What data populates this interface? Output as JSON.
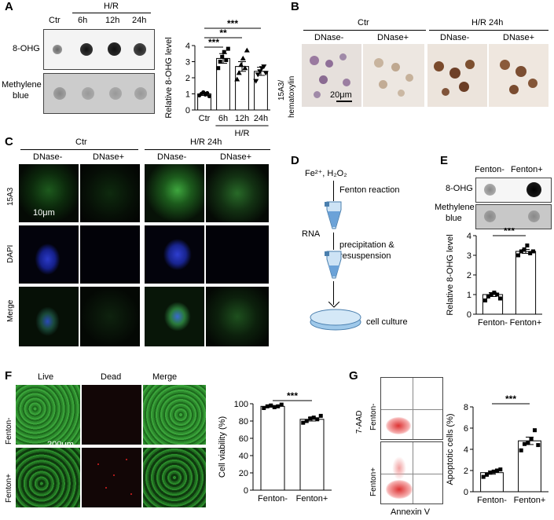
{
  "panels": {
    "A": "A",
    "B": "B",
    "C": "C",
    "D": "D",
    "E": "E",
    "F": "F",
    "G": "G"
  },
  "panelA": {
    "group_label": "H/R",
    "lanes": [
      "Ctr",
      "6h",
      "12h",
      "24h"
    ],
    "row1": "8-OHG",
    "row2_line1": "Methylene",
    "row2_line2": "blue"
  },
  "panelB": {
    "ylabel_line1": "15A3/",
    "ylabel_line2": "hematoxylin",
    "groups": [
      "Ctr",
      "H/R 24h"
    ],
    "sub": [
      "DNase-",
      "DNase+",
      "DNase-",
      "DNase+"
    ],
    "scale": "20μm"
  },
  "panelC": {
    "groups": [
      "Ctr",
      "H/R 24h"
    ],
    "sub": [
      "DNase-",
      "DNase+",
      "DNase-",
      "DNase+"
    ],
    "rows": [
      "15A3",
      "DAPI",
      "Merge"
    ],
    "scale": "10μm"
  },
  "panelD": {
    "reagent": "Fe²⁺, H₂O₂",
    "step1": "Fenton reaction",
    "rna": "RNA",
    "step2_line1": "precipitation &",
    "step2_line2": "resuspension",
    "step3": "cell culture"
  },
  "panelE": {
    "lanes": [
      "Fenton-",
      "Fenton+"
    ],
    "row1": "8-OHG",
    "row2_line1": "Methylene",
    "row2_line2": "blue"
  },
  "panelF": {
    "cols": [
      "Live",
      "Dead",
      "Merge"
    ],
    "rows": [
      "Fenton-",
      "Fenton+"
    ],
    "scale": "200μm"
  },
  "panelG": {
    "rows": [
      "Fenton-",
      "Fenton+"
    ],
    "xlabel": "Annexin V",
    "ylabel": "7-AAD"
  },
  "chart_data": [
    {
      "id": "A",
      "type": "bar",
      "ylabel": "Relative 8-OHG level",
      "ylim": [
        0,
        4
      ],
      "yticks": [
        0,
        1,
        2,
        3,
        4
      ],
      "categories": [
        "Ctr",
        "6h",
        "12h",
        "24h"
      ],
      "group_label": "H/R",
      "values": [
        1.0,
        3.2,
        2.7,
        2.4
      ],
      "errors": [
        0.1,
        0.3,
        0.3,
        0.25
      ],
      "points": [
        [
          0.9,
          1.0,
          1.1,
          0.95,
          1.05,
          0.85
        ],
        [
          2.6,
          3.0,
          3.3,
          3.6,
          3.1,
          3.8
        ],
        [
          1.9,
          2.3,
          2.8,
          3.2,
          2.6,
          3.7
        ],
        [
          1.8,
          2.2,
          2.4,
          2.6,
          2.7,
          2.3
        ]
      ],
      "markers": [
        "circle",
        "square",
        "triangle",
        "inverted-triangle"
      ],
      "significance": [
        {
          "from": 0,
          "to": 1,
          "label": "***"
        },
        {
          "from": 0,
          "to": 2,
          "label": "**"
        },
        {
          "from": 0,
          "to": 3,
          "label": "***"
        }
      ]
    },
    {
      "id": "E",
      "type": "bar",
      "ylabel": "Relative 8-OHG level",
      "ylim": [
        0,
        4
      ],
      "yticks": [
        0,
        1,
        2,
        3,
        4
      ],
      "categories": [
        "Fenton-",
        "Fenton+"
      ],
      "values": [
        1.0,
        3.2
      ],
      "errors": [
        0.1,
        0.1
      ],
      "points": [
        [
          0.7,
          0.9,
          1.0,
          1.1,
          1.0,
          0.8
        ],
        [
          3.0,
          3.2,
          3.3,
          3.5,
          3.1,
          3.2
        ]
      ],
      "markers": [
        "square",
        "square"
      ],
      "significance": [
        {
          "from": 0,
          "to": 1,
          "label": "***"
        }
      ]
    },
    {
      "id": "F",
      "type": "bar",
      "ylabel": "Cell viability (%)",
      "ylim": [
        0,
        100
      ],
      "yticks": [
        0,
        20,
        40,
        60,
        80,
        100
      ],
      "categories": [
        "Fenton-",
        "Fenton+"
      ],
      "values": [
        97,
        82
      ],
      "errors": [
        1,
        2
      ],
      "points": [
        [
          95,
          97,
          98,
          96,
          97,
          99
        ],
        [
          78,
          80,
          83,
          84,
          82,
          86
        ]
      ],
      "markers": [
        "square",
        "square"
      ],
      "significance": [
        {
          "from": 0,
          "to": 1,
          "label": "***"
        }
      ]
    },
    {
      "id": "G",
      "type": "bar",
      "ylabel": "Apoptotic cells (%)",
      "ylim": [
        0,
        8
      ],
      "yticks": [
        0,
        2,
        4,
        6,
        8
      ],
      "categories": [
        "Fenton-",
        "Fenton+"
      ],
      "values": [
        1.8,
        4.8
      ],
      "errors": [
        0.15,
        0.35
      ],
      "points": [
        [
          1.4,
          1.6,
          1.8,
          1.9,
          2.0,
          2.1
        ],
        [
          3.9,
          4.5,
          4.6,
          5.0,
          5.8,
          4.4
        ]
      ],
      "markers": [
        "square",
        "square"
      ],
      "significance": [
        {
          "from": 0,
          "to": 1,
          "label": "***"
        }
      ]
    }
  ]
}
